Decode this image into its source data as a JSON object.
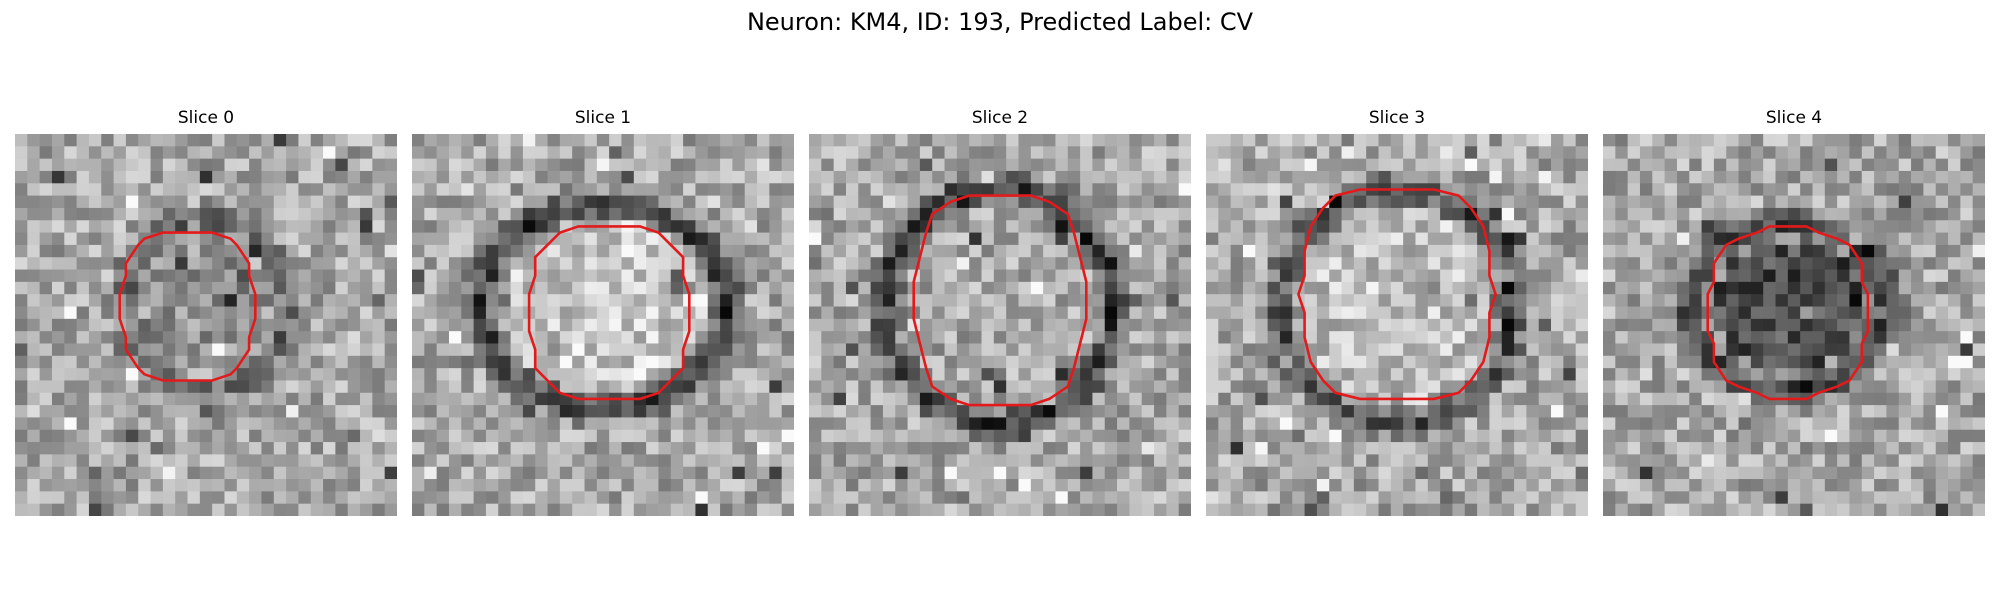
{
  "figure": {
    "title": "Neuron: KM4, ID: 193, Predicted Label: CV"
  },
  "panels": [
    {
      "title": "Slice 0"
    },
    {
      "title": "Slice 1"
    },
    {
      "title": "Slice 2"
    },
    {
      "title": "Slice 3"
    },
    {
      "title": "Slice 4"
    }
  ],
  "colors": {
    "contour": "#e31a1c",
    "background": "#ffffff"
  }
}
